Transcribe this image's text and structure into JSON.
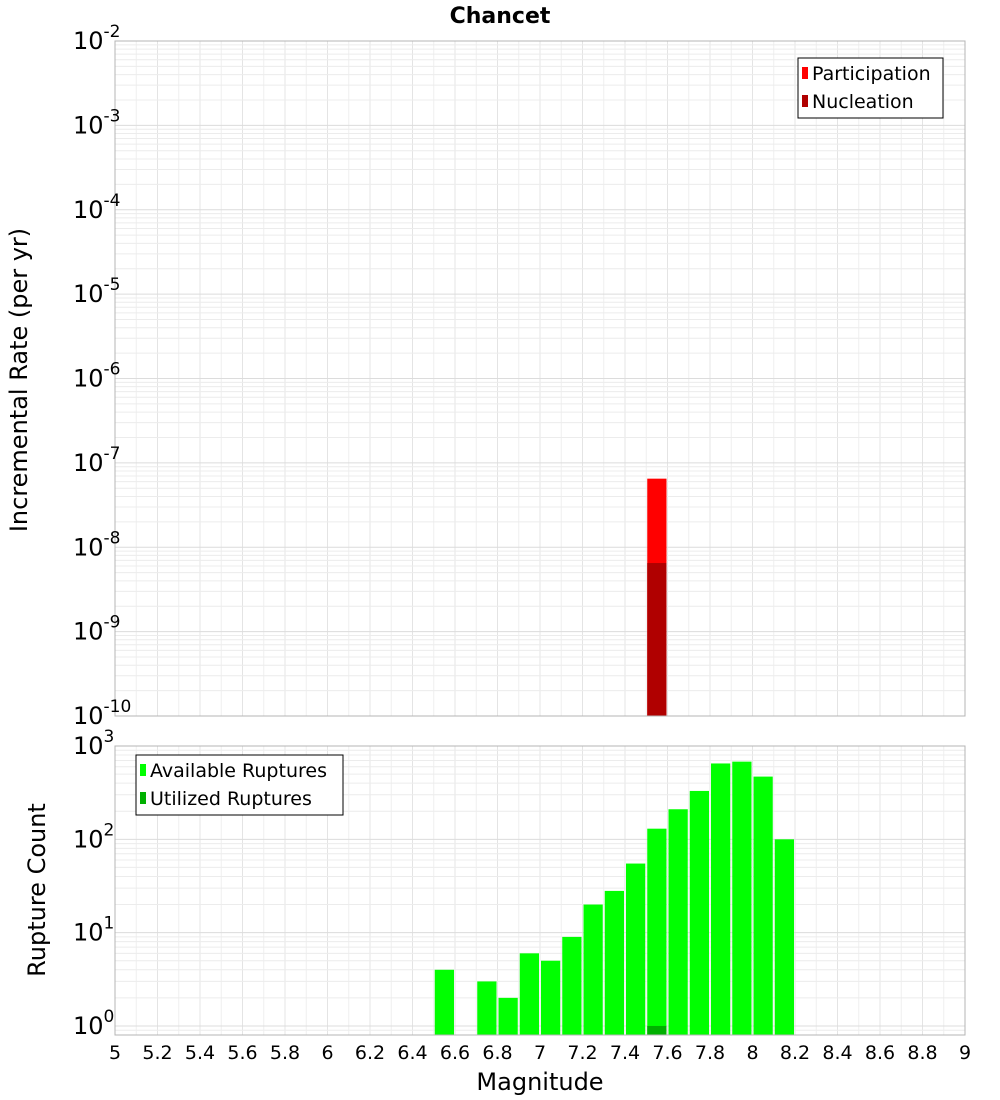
{
  "figure": {
    "title": "Chancet",
    "xlabel": "Magnitude"
  },
  "chart_data": [
    {
      "type": "bar",
      "panel": "top",
      "ylabel": "Incremental Rate (per yr)",
      "yscale": "log",
      "xlim": [
        5,
        9
      ],
      "ylim": [
        1e-10,
        0.01
      ],
      "x_ticks": [
        "5",
        "5.2",
        "5.4",
        "5.6",
        "5.8",
        "6",
        "6.2",
        "6.4",
        "6.6",
        "6.8",
        "7",
        "7.2",
        "7.4",
        "7.6",
        "7.8",
        "8",
        "8.2",
        "8.4",
        "8.6",
        "8.8",
        "9"
      ],
      "y_ticks": [
        {
          "base": "10",
          "exp": "-2"
        },
        {
          "base": "10",
          "exp": "-3"
        },
        {
          "base": "10",
          "exp": "-4"
        },
        {
          "base": "10",
          "exp": "-5"
        },
        {
          "base": "10",
          "exp": "-6"
        },
        {
          "base": "10",
          "exp": "-7"
        },
        {
          "base": "10",
          "exp": "-8"
        },
        {
          "base": "10",
          "exp": "-9"
        },
        {
          "base": "10",
          "exp": "-10"
        }
      ],
      "grid": true,
      "legend_position": "top-right",
      "series": [
        {
          "name": "Participation",
          "color": "#ff0000",
          "x": [
            7.55
          ],
          "values": [
            6.5e-08
          ]
        },
        {
          "name": "Nucleation",
          "color": "#b00000",
          "x": [
            7.55
          ],
          "values": [
            6.5e-09
          ]
        }
      ]
    },
    {
      "type": "bar",
      "panel": "bottom",
      "ylabel": "Rupture Count",
      "yscale": "log",
      "xlim": [
        5,
        9
      ],
      "ylim": [
        0.8,
        1000
      ],
      "x_ticks": [
        "5",
        "5.2",
        "5.4",
        "5.6",
        "5.8",
        "6",
        "6.2",
        "6.4",
        "6.6",
        "6.8",
        "7",
        "7.2",
        "7.4",
        "7.6",
        "7.8",
        "8",
        "8.2",
        "8.4",
        "8.6",
        "8.8",
        "9"
      ],
      "y_ticks": [
        {
          "base": "10",
          "exp": "3"
        },
        {
          "base": "10",
          "exp": "2"
        },
        {
          "base": "10",
          "exp": "1"
        },
        {
          "base": "10",
          "exp": "0"
        }
      ],
      "grid": true,
      "legend_position": "top-left",
      "series": [
        {
          "name": "Available Ruptures",
          "color": "#00ff00",
          "x": [
            6.55,
            6.75,
            6.85,
            6.95,
            7.05,
            7.15,
            7.25,
            7.35,
            7.45,
            7.55,
            7.65,
            7.75,
            7.85,
            7.95,
            8.05,
            8.15
          ],
          "values": [
            4,
            3,
            2,
            6,
            5,
            9,
            20,
            28,
            55,
            130,
            210,
            330,
            650,
            680,
            470,
            100
          ]
        },
        {
          "name": "Utilized Ruptures",
          "color": "#00b000",
          "x": [
            7.55
          ],
          "values": [
            1
          ]
        }
      ]
    }
  ]
}
